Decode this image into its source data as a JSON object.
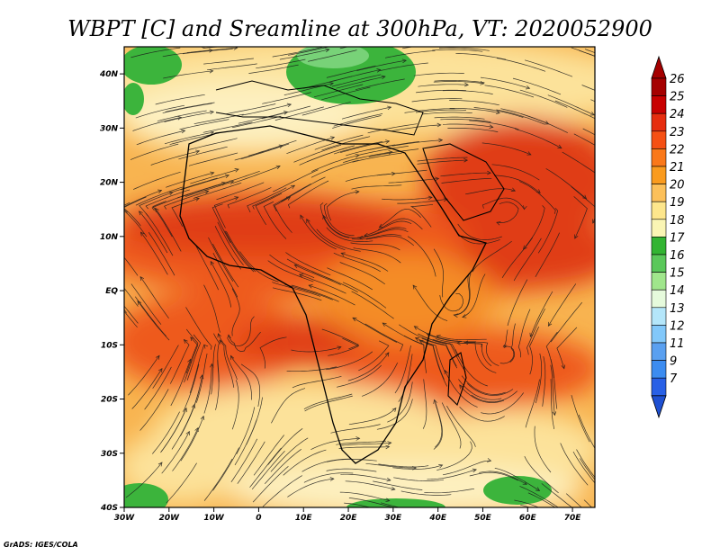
{
  "title": "WBPT [C] and Sreamline at 300hPa, VT: 2020052900",
  "credit": "GrADS: IGES/COLA",
  "map": {
    "lon_range": [
      -30,
      75
    ],
    "lat_range": [
      -40,
      45
    ],
    "lat_ticks": [
      {
        "value": 40,
        "label": "40N"
      },
      {
        "value": 30,
        "label": "30N"
      },
      {
        "value": 20,
        "label": "20N"
      },
      {
        "value": 10,
        "label": "10N"
      },
      {
        "value": 0,
        "label": "EQ"
      },
      {
        "value": -10,
        "label": "10S"
      },
      {
        "value": -20,
        "label": "20S"
      },
      {
        "value": -30,
        "label": "30S"
      },
      {
        "value": -40,
        "label": "40S"
      }
    ],
    "lon_ticks": [
      {
        "value": -30,
        "label": "30W"
      },
      {
        "value": -20,
        "label": "20W"
      },
      {
        "value": -10,
        "label": "10W"
      },
      {
        "value": 0,
        "label": "0"
      },
      {
        "value": 10,
        "label": "10E"
      },
      {
        "value": 20,
        "label": "20E"
      },
      {
        "value": 30,
        "label": "30E"
      },
      {
        "value": 40,
        "label": "40E"
      },
      {
        "value": 50,
        "label": "50E"
      },
      {
        "value": 60,
        "label": "60E"
      },
      {
        "value": 70,
        "label": "70E"
      }
    ]
  },
  "colorbar": {
    "levels": [
      {
        "label": "26",
        "color": "#a50000"
      },
      {
        "label": "25",
        "color": "#c80000"
      },
      {
        "label": "24",
        "color": "#e62d0f"
      },
      {
        "label": "23",
        "color": "#f55014"
      },
      {
        "label": "22",
        "color": "#fa7819"
      },
      {
        "label": "21",
        "color": "#fa9b1e"
      },
      {
        "label": "20",
        "color": "#fcc05a"
      },
      {
        "label": "19",
        "color": "#fde68c"
      },
      {
        "label": "18",
        "color": "#faf5b4"
      },
      {
        "label": "17",
        "color": "#32b432"
      },
      {
        "label": "16",
        "color": "#5ac85a"
      },
      {
        "label": "15",
        "color": "#a0e68c"
      },
      {
        "label": "14",
        "color": "#e6fadc"
      },
      {
        "label": "13",
        "color": "#b4e6fa"
      },
      {
        "label": "12",
        "color": "#82c8fa"
      },
      {
        "label": "11",
        "color": "#5aa0f0"
      },
      {
        "label": "9",
        "color": "#3c8cf0"
      },
      {
        "label": "7",
        "color": "#2860e6"
      }
    ],
    "bottom_color": "#1e50d2"
  },
  "field_colors": {
    "deep_red": "#e03c14",
    "red_orange": "#ee5a1c",
    "orange": "#f48c28",
    "light_orange": "#f8b450",
    "pale_yellow": "#fce29a",
    "cream": "#fdf0c0",
    "green": "#3cb43c",
    "light_green": "#78d278"
  }
}
